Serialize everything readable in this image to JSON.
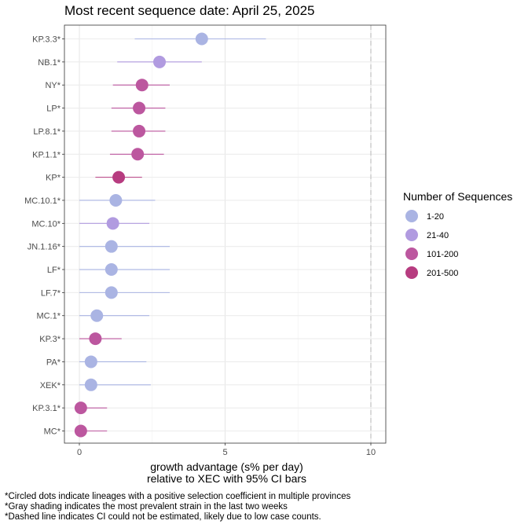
{
  "chart_data": {
    "type": "scatter",
    "title": "Most recent sequence date: April 25, 2025",
    "xlabel_line1": "growth advantage (s% per day)",
    "xlabel_line2": "relative to  XEC  with 95% CI bars",
    "xlim": [
      -0.5,
      10.5
    ],
    "xticks": [
      0,
      5,
      10
    ],
    "dashed_line_x": 10,
    "grid": true,
    "legend_title": "Number of Sequences",
    "legend_placement": "right",
    "legend": [
      {
        "label": "1-20",
        "color": "#aab4e3"
      },
      {
        "label": "21-40",
        "color": "#b19be0"
      },
      {
        "label": "101-200",
        "color": "#bc579f"
      },
      {
        "label": "201-500",
        "color": "#b73c80"
      }
    ],
    "points": [
      {
        "lineage": "KP.3.3*",
        "estimate": 4.2,
        "ci_low": 1.9,
        "ci_high": 6.4,
        "group": 0
      },
      {
        "lineage": "NB.1*",
        "estimate": 2.75,
        "ci_low": 1.3,
        "ci_high": 4.2,
        "group": 1
      },
      {
        "lineage": "NY*",
        "estimate": 2.15,
        "ci_low": 1.15,
        "ci_high": 3.1,
        "group": 2
      },
      {
        "lineage": "LP*",
        "estimate": 2.05,
        "ci_low": 1.1,
        "ci_high": 2.95,
        "group": 2
      },
      {
        "lineage": "LP.8.1*",
        "estimate": 2.05,
        "ci_low": 1.1,
        "ci_high": 2.95,
        "group": 2
      },
      {
        "lineage": "KP.1.1*",
        "estimate": 2.0,
        "ci_low": 1.05,
        "ci_high": 2.9,
        "group": 2
      },
      {
        "lineage": "KP*",
        "estimate": 1.35,
        "ci_low": 0.55,
        "ci_high": 2.15,
        "group": 3
      },
      {
        "lineage": "MC.10.1*",
        "estimate": 1.25,
        "ci_low": 0.0,
        "ci_high": 2.6,
        "group": 0
      },
      {
        "lineage": "MC.10*",
        "estimate": 1.15,
        "ci_low": 0.0,
        "ci_high": 2.4,
        "group": 1
      },
      {
        "lineage": "JN.1.16*",
        "estimate": 1.1,
        "ci_low": 0.0,
        "ci_high": 3.1,
        "group": 0
      },
      {
        "lineage": "LF*",
        "estimate": 1.1,
        "ci_low": 0.0,
        "ci_high": 3.1,
        "group": 0
      },
      {
        "lineage": "LF.7*",
        "estimate": 1.1,
        "ci_low": 0.0,
        "ci_high": 3.1,
        "group": 0
      },
      {
        "lineage": "MC.1*",
        "estimate": 0.6,
        "ci_low": 0.0,
        "ci_high": 2.4,
        "group": 0
      },
      {
        "lineage": "KP.3*",
        "estimate": 0.55,
        "ci_low": 0.0,
        "ci_high": 1.45,
        "group": 2
      },
      {
        "lineage": "PA*",
        "estimate": 0.4,
        "ci_low": 0.0,
        "ci_high": 2.3,
        "group": 0
      },
      {
        "lineage": "XEK*",
        "estimate": 0.4,
        "ci_low": 0.0,
        "ci_high": 2.45,
        "group": 0
      },
      {
        "lineage": "KP.3.1*",
        "estimate": 0.05,
        "ci_low": 0.0,
        "ci_high": 0.95,
        "group": 2
      },
      {
        "lineage": "MC*",
        "estimate": 0.05,
        "ci_low": 0.0,
        "ci_high": 0.95,
        "group": 2
      }
    ]
  },
  "footnotes": [
    "*Circled dots indicate lineages with a positive selection coefficient in multiple provinces",
    "*Gray shading indicates the most prevalent strain in the last two weeks",
    "*Dashed line indicates CI could not be estimated, likely due to low case counts."
  ]
}
